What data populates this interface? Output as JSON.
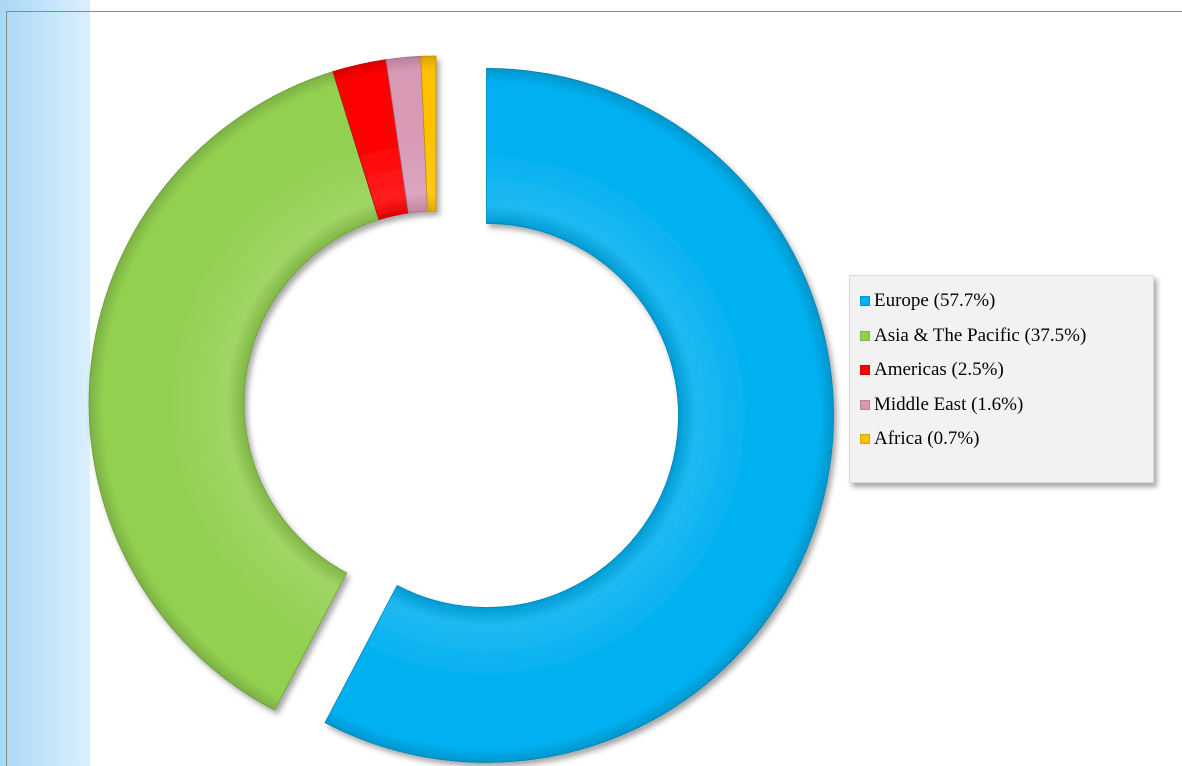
{
  "chart_data": {
    "type": "pie",
    "variant": "donut",
    "title": "",
    "categories": [
      "Europe",
      "Asia & The Pacific",
      "Americas",
      "Middle East",
      "Africa"
    ],
    "values": [
      57.7,
      37.5,
      2.5,
      1.6,
      0.7
    ],
    "unit": "%",
    "colors": [
      "#00b0f0",
      "#92d050",
      "#ff0000",
      "#d899b5",
      "#ffc000"
    ],
    "exploded": [
      "Europe"
    ],
    "legend": {
      "placement": "right",
      "labels": [
        "Europe (57.7%)",
        "Asia & The Pacific (37.5%)",
        "Americas (2.5%)",
        "Middle East (1.6%)",
        "Africa (0.7%)"
      ]
    }
  }
}
